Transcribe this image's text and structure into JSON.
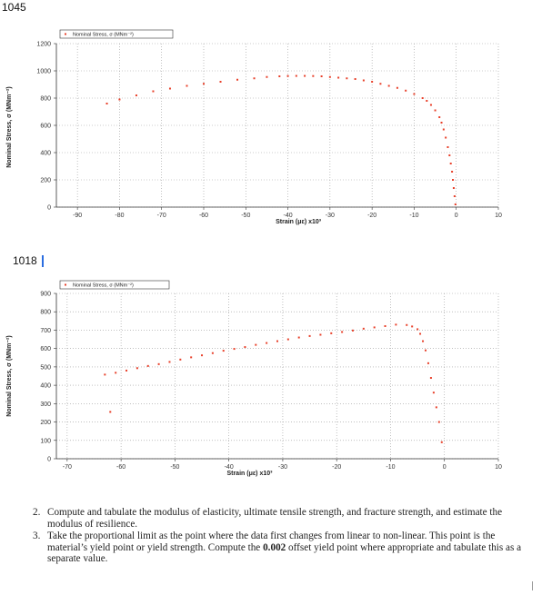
{
  "chart1_label": "1045",
  "chart2_label": "1018",
  "questions": [
    {
      "num": "2.",
      "text": "Compute and tabulate the modulus of elasticity, ultimate tensile strength, and fracture strength, and estimate the modulus of resilience."
    },
    {
      "num": "3.",
      "text_before": "Take the proportional limit as the point where the data first changes from linear to non-linear. This point is the material’s yield point or yield strength. Compute the ",
      "bold": "0.002",
      "text_after": " offset yield point where appropriate and tabulate this as a separate value."
    }
  ],
  "colors": {
    "series": "#e8402a",
    "grid": "#9a9a9a"
  },
  "chart_data": [
    {
      "type": "scatter",
      "title": "",
      "legend": "Nominal Stress, σ (MNm⁻²)",
      "legend_position": "top-left",
      "xlabel": "Strain (με) x10³",
      "ylabel": "Nominal Stress, σ (MNm⁻²)",
      "xlim": [
        -95,
        10
      ],
      "ylim": [
        0,
        1200
      ],
      "xticks": [
        -90,
        -80,
        -70,
        -60,
        -50,
        -40,
        -30,
        -20,
        -10,
        0,
        10
      ],
      "yticks": [
        0,
        200,
        400,
        600,
        800,
        1000,
        1200
      ],
      "grid": true,
      "series": [
        {
          "name": "Nominal Stress, σ (MNm⁻²)",
          "x": [
            -83,
            -80,
            -76,
            -72,
            -68,
            -64,
            -60,
            -56,
            -52,
            -48,
            -45,
            -42,
            -40,
            -38,
            -36,
            -34,
            -32,
            -30,
            -28,
            -26,
            -24,
            -22,
            -20,
            -18,
            -16,
            -14,
            -12,
            -10,
            -8,
            -7,
            -6,
            -5,
            -4,
            -3.5,
            -3,
            -2.5,
            -2,
            -1.6,
            -1.3,
            -1,
            -0.8,
            -0.6,
            -0.4,
            -0.2
          ],
          "y": [
            760,
            790,
            820,
            850,
            870,
            890,
            905,
            920,
            935,
            945,
            955,
            960,
            962,
            963,
            963,
            962,
            960,
            955,
            950,
            945,
            940,
            930,
            920,
            905,
            890,
            875,
            855,
            830,
            800,
            780,
            750,
            710,
            660,
            620,
            570,
            510,
            440,
            380,
            320,
            260,
            200,
            140,
            80,
            20
          ]
        }
      ]
    },
    {
      "type": "scatter",
      "title": "",
      "legend": "Nominal Stress, σ (MNm⁻²)",
      "legend_position": "top-left",
      "xlabel": "Strain (με) x10³",
      "ylabel": "Nominal Stress, σ (MNm⁻²)",
      "xlim": [
        -72,
        10
      ],
      "ylim": [
        0,
        900
      ],
      "xticks": [
        -70,
        -60,
        -50,
        -40,
        -30,
        -20,
        -10,
        0,
        10
      ],
      "yticks": [
        0,
        100,
        200,
        300,
        400,
        500,
        600,
        700,
        800,
        900
      ],
      "grid": true,
      "series": [
        {
          "name": "Nominal Stress, σ (MNm⁻²)",
          "x": [
            -63,
            -61,
            -59,
            -57,
            -55,
            -53,
            -51,
            -49,
            -47,
            -45,
            -43,
            -41,
            -39,
            -37,
            -35,
            -33,
            -31,
            -29,
            -27,
            -25,
            -23,
            -21,
            -19,
            -17,
            -15,
            -13,
            -11,
            -9,
            -7,
            -6,
            -5,
            -4.5,
            -4,
            -3.5,
            -3,
            -2.5,
            -2,
            -1.5,
            -1,
            -0.5,
            -62
          ],
          "y": [
            458,
            468,
            480,
            493,
            505,
            515,
            527,
            540,
            552,
            563,
            575,
            588,
            598,
            608,
            620,
            630,
            640,
            650,
            660,
            668,
            675,
            683,
            690,
            698,
            708,
            715,
            722,
            730,
            728,
            720,
            705,
            680,
            640,
            590,
            520,
            440,
            360,
            280,
            200,
            90,
            255
          ]
        }
      ]
    }
  ]
}
